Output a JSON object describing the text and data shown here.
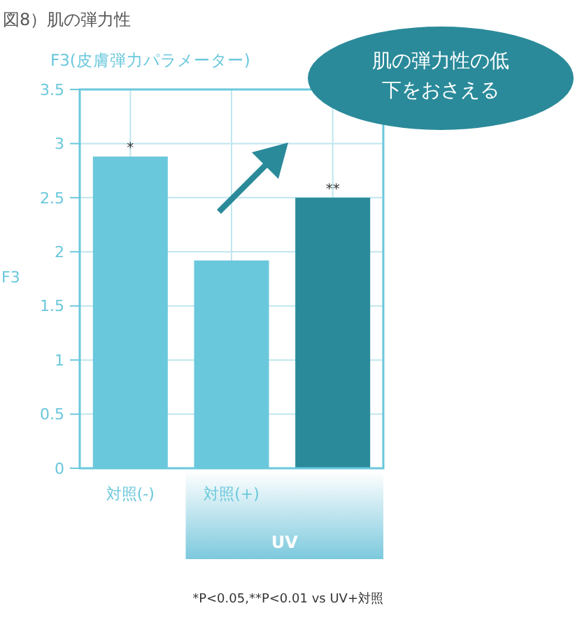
{
  "chart_data": {
    "type": "bar",
    "title": "図8）肌の弾力性",
    "subtitle": "F3(皮膚弾力パラメーター)",
    "ylabel": "F3",
    "categories": [
      "対照(-)",
      "対照(+)",
      null
    ],
    "values": [
      2.88,
      1.92,
      2.5
    ],
    "colors": [
      "#6ac8dc",
      "#6ac8dc",
      "#2a8a9a"
    ],
    "ylim": [
      0,
      3.5
    ],
    "yticks": [
      0,
      0.5,
      1,
      1.5,
      2,
      2.5,
      3,
      3.5
    ],
    "grid": true,
    "annotations": [
      {
        "text": "*",
        "x": "対照(-)",
        "y": 2.88
      },
      {
        "text": "**",
        "y": 2.5
      },
      "肌の弾力性の低下をおさえる",
      "UV",
      "*P<0.05,**P<0.01 vs UV+対照"
    ]
  }
}
